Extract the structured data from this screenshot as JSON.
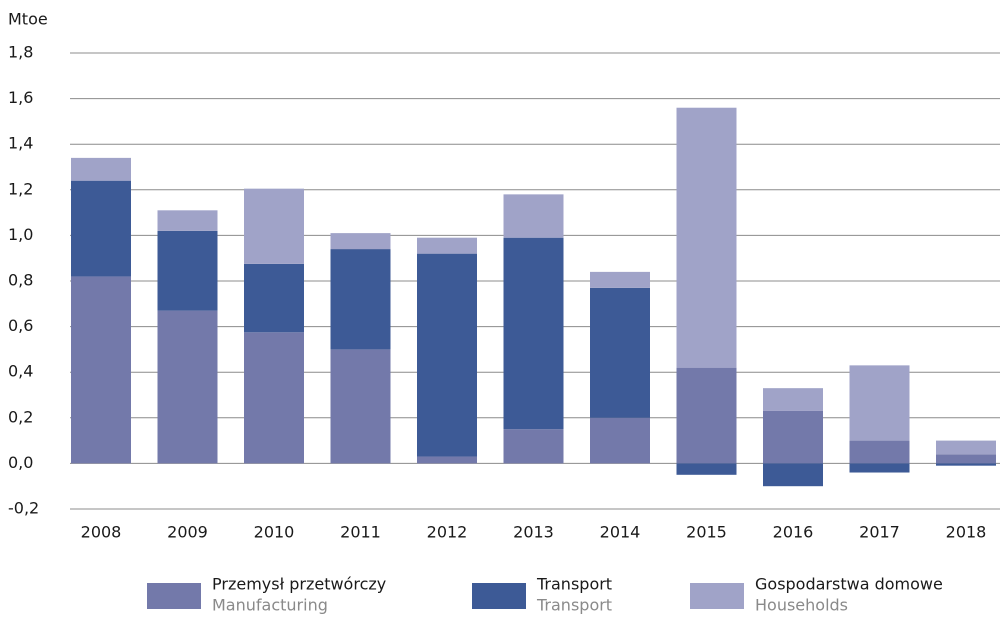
{
  "chart_data": {
    "type": "stacked_bar",
    "y_axis_label": "Mtoe",
    "categories": [
      "2008",
      "2009",
      "2010",
      "2011",
      "2012",
      "2013",
      "2014",
      "2015",
      "2016",
      "2017",
      "2018"
    ],
    "series": [
      {
        "name": "Przemysł przetwórczy",
        "name_en": "Manufacturing",
        "color": "#7379aa",
        "values": [
          0.82,
          0.67,
          0.575,
          0.5,
          0.03,
          0.15,
          0.2,
          0.42,
          0.23,
          0.1,
          0.04
        ]
      },
      {
        "name": "Transport",
        "name_en": "Transport",
        "color": "#3d5a96",
        "values": [
          0.42,
          0.35,
          0.3,
          0.44,
          0.89,
          0.84,
          0.57,
          -0.05,
          -0.1,
          -0.04,
          -0.01
        ]
      },
      {
        "name": "Gospodarstwa domowe",
        "name_en": "Households",
        "color": "#a0a3c8",
        "values": [
          0.1,
          0.09,
          0.33,
          0.07,
          0.07,
          0.19,
          0.07,
          1.14,
          0.1,
          0.33,
          0.06
        ]
      }
    ],
    "ylim": [
      -0.2,
      1.8
    ],
    "yticks": [
      {
        "value": -0.2,
        "label": "-0,2"
      },
      {
        "value": 0,
        "label": "0,0"
      },
      {
        "value": 0.2,
        "label": "0,2"
      },
      {
        "value": 0.4,
        "label": "0,4"
      },
      {
        "value": 0.6,
        "label": "0,6"
      },
      {
        "value": 0.8,
        "label": "0,8"
      },
      {
        "value": 1.0,
        "label": "1,0"
      },
      {
        "value": 1.2,
        "label": "1,2"
      },
      {
        "value": 1.4,
        "label": "1,4"
      },
      {
        "value": 1.6,
        "label": "1,6"
      },
      {
        "value": 1.8,
        "label": "1,8"
      }
    ],
    "grid": true,
    "legend": "bottom"
  }
}
